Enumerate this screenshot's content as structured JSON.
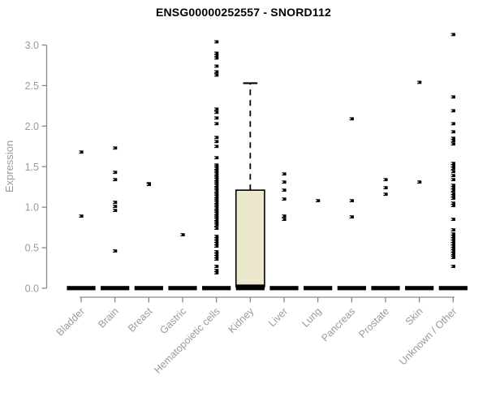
{
  "title": "ENSG00000252557 - SNORD112",
  "colors": {
    "marker": "#000000",
    "box_fill": "#ece8cd",
    "box_stroke": "#000000",
    "axis_line": "#8a8a8a",
    "axis_text": "#9a9a9a",
    "title_text": "#000000"
  },
  "chart_data": {
    "type": "boxplot",
    "subtype": "strip-plot-with-single-box",
    "title": "ENSG00000252557 - SNORD112",
    "xlabel": "",
    "ylabel": "Expression",
    "ylim": [
      0,
      3.15
    ],
    "grid": false,
    "legend": "none",
    "y_ticks": [
      0.0,
      0.5,
      1.0,
      1.5,
      2.0,
      2.5,
      3.0
    ],
    "y_tick_labels": [
      "0.0",
      "0.5",
      "1.0",
      "1.5",
      "2.0",
      "2.5",
      "3.0"
    ],
    "categories": [
      "Bladder",
      "Brain",
      "Breast",
      "Gastric",
      "Hematopoietic cells",
      "Kidney",
      "Liver",
      "Lung",
      "Pancreas",
      "Prostate",
      "Skin",
      "Unknown / Other"
    ],
    "zero_cluster_note": "every category has a dense horizontal bar of overlapping points at expression 0",
    "series": [
      {
        "name": "Bladder",
        "zero_bar": true,
        "points": [
          1.68,
          0.89
        ]
      },
      {
        "name": "Brain",
        "zero_bar": true,
        "points": [
          1.73,
          1.43,
          1.34,
          1.06,
          1.01,
          0.96,
          0.46
        ]
      },
      {
        "name": "Breast",
        "zero_bar": true,
        "points": [
          1.29,
          1.28
        ]
      },
      {
        "name": "Gastric",
        "zero_bar": true,
        "points": [
          0.66
        ]
      },
      {
        "name": "Hematopoietic cells",
        "zero_bar": true,
        "points": [
          3.04,
          2.9,
          2.87,
          2.84,
          2.74,
          2.67,
          2.63,
          2.21,
          2.17,
          2.1,
          2.03,
          1.86,
          1.81,
          1.75,
          1.61,
          1.52,
          1.5,
          1.48,
          1.45,
          1.43,
          1.41,
          1.38,
          1.36,
          1.34,
          1.31,
          1.29,
          1.27,
          1.24,
          1.22,
          1.2,
          1.17,
          1.15,
          1.13,
          1.1,
          1.08,
          1.06,
          1.03,
          1.01,
          0.99,
          0.96,
          0.94,
          0.92,
          0.89,
          0.87,
          0.85,
          0.82,
          0.8,
          0.78,
          0.74,
          0.64,
          0.61,
          0.58,
          0.55,
          0.52,
          0.45,
          0.42,
          0.39,
          0.36,
          0.27,
          0.22,
          0.19
        ]
      },
      {
        "name": "Kidney",
        "zero_bar": true,
        "points": []
      },
      {
        "name": "Liver",
        "zero_bar": true,
        "points": [
          1.41,
          1.31,
          1.21,
          1.1,
          0.89,
          0.85
        ]
      },
      {
        "name": "Lung",
        "zero_bar": true,
        "points": [
          1.08
        ]
      },
      {
        "name": "Pancreas",
        "zero_bar": true,
        "points": [
          2.09,
          1.08,
          0.88
        ]
      },
      {
        "name": "Prostate",
        "zero_bar": true,
        "points": [
          1.34,
          1.24,
          1.16
        ]
      },
      {
        "name": "Skin",
        "zero_bar": true,
        "points": [
          2.54,
          1.31
        ]
      },
      {
        "name": "Unknown / Other",
        "zero_bar": true,
        "points": [
          3.13,
          2.36,
          2.19,
          2.03,
          1.93,
          1.85,
          1.82,
          1.78,
          1.54,
          1.51,
          1.48,
          1.44,
          1.39,
          1.34,
          1.27,
          1.24,
          1.21,
          1.17,
          1.14,
          1.11,
          1.05,
          1.02,
          0.85,
          0.72,
          0.67,
          0.64,
          0.61,
          0.58,
          0.55,
          0.52,
          0.49,
          0.46,
          0.43,
          0.4,
          0.38,
          0.27
        ]
      }
    ],
    "boxplot": {
      "category": "Kidney",
      "q3": 1.21,
      "median": 0.02,
      "q1": 0.0,
      "whisker_high": 2.53,
      "whisker_low": 0.0,
      "whisker_style": "dashed"
    }
  }
}
